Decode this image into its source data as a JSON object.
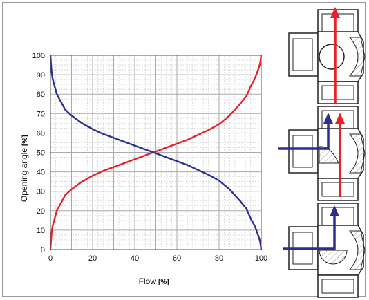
{
  "chart_data": {
    "type": "line",
    "xlabel": "Flow",
    "xunit": "[%]",
    "ylabel": "Opening angle",
    "yunit": "[%]",
    "xlim": [
      0,
      100
    ],
    "ylim": [
      0,
      100
    ],
    "xticks": [
      "0",
      "20",
      "40",
      "60",
      "80",
      "100"
    ],
    "yticks": [
      "0",
      "10",
      "20",
      "30",
      "40",
      "50",
      "60",
      "70",
      "80",
      "90",
      "100"
    ],
    "grid": true,
    "series": [
      {
        "color": "#e8202a",
        "x": [
          0,
          0.5,
          1,
          2,
          3,
          5,
          7,
          10,
          15,
          20,
          25,
          30,
          35,
          40,
          45,
          50,
          55,
          60,
          65,
          70,
          75,
          80,
          85,
          90,
          93,
          95,
          97,
          98,
          99,
          99.5,
          100
        ],
        "y": [
          0,
          8,
          12,
          16,
          20,
          24,
          28,
          31,
          35,
          38,
          40.5,
          42.5,
          44.5,
          46.5,
          48.5,
          50.5,
          52.5,
          54.5,
          56.5,
          59,
          61.5,
          64.5,
          69,
          75,
          79,
          84,
          88,
          91,
          94,
          96,
          100
        ]
      },
      {
        "color": "#2b2f8f",
        "x": [
          0,
          0.5,
          1,
          2,
          3,
          5,
          7,
          10,
          15,
          20,
          25,
          30,
          35,
          40,
          45,
          50,
          55,
          60,
          65,
          70,
          75,
          80,
          85,
          90,
          93,
          95,
          97,
          98,
          99,
          99.5,
          100
        ],
        "y": [
          100,
          92,
          88,
          84,
          80,
          76,
          72,
          69,
          65,
          62,
          59.5,
          57.5,
          55.5,
          53.5,
          51.5,
          49.5,
          47.5,
          45.5,
          43.5,
          41,
          38.5,
          35.5,
          31,
          25,
          21,
          16,
          12,
          9,
          6,
          4,
          0
        ]
      }
    ]
  }
}
